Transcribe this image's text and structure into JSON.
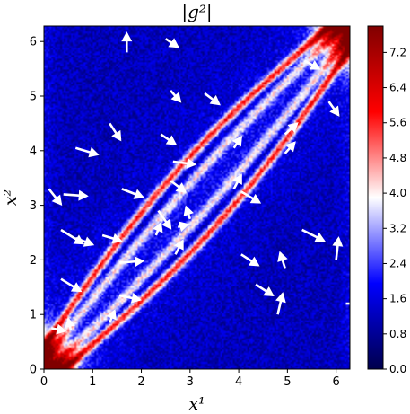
{
  "chart_data": {
    "type": "heatmap",
    "title": "|g²|",
    "xlabel": "x¹",
    "ylabel": "x²",
    "xlim": [
      0,
      6.283
    ],
    "ylim": [
      0,
      6.283
    ],
    "x_ticks": [
      0,
      1,
      2,
      3,
      4,
      5,
      6
    ],
    "y_ticks": [
      0,
      1,
      2,
      3,
      4,
      5,
      6
    ],
    "colorbar": {
      "colormap": "seismic",
      "range": [
        0.0,
        7.8
      ],
      "ticks": [
        "0.0",
        "0.8",
        "1.6",
        "2.4",
        "3.2",
        "4.0",
        "4.8",
        "5.6",
        "6.4",
        "7.2"
      ],
      "colors": [
        "#00004c",
        "#0000ff",
        "#ffffff",
        "#ff0000",
        "#800000"
      ]
    },
    "field": {
      "background_value": 1.2,
      "diagonal_band_value": 4.2,
      "ridge_value": 5.8,
      "corner_values": {
        "bottom_left": 7.0,
        "top_right": 7.0
      }
    },
    "quiver": [
      {
        "x": 0.15,
        "y": 0.75,
        "u": 0.28,
        "v": -0.05
      },
      {
        "x": 0.55,
        "y": 0.72,
        "u": -0.05,
        "v": 0.2
      },
      {
        "x": 1.35,
        "y": 0.85,
        "u": 0.1,
        "v": 0.22
      },
      {
        "x": 1.55,
        "y": 1.35,
        "u": 0.42,
        "v": -0.08
      },
      {
        "x": 0.35,
        "y": 1.65,
        "u": 0.4,
        "v": -0.22
      },
      {
        "x": 1.55,
        "y": 1.95,
        "u": 0.48,
        "v": 0.03
      },
      {
        "x": 0.35,
        "y": 2.55,
        "u": 0.45,
        "v": -0.25
      },
      {
        "x": 0.65,
        "y": 2.4,
        "u": 0.35,
        "v": -0.12
      },
      {
        "x": 1.2,
        "y": 2.45,
        "u": 0.38,
        "v": -0.1
      },
      {
        "x": 0.1,
        "y": 3.3,
        "u": 0.25,
        "v": -0.28
      },
      {
        "x": 0.4,
        "y": 3.2,
        "u": 0.48,
        "v": -0.03
      },
      {
        "x": 1.6,
        "y": 3.3,
        "u": 0.43,
        "v": -0.15
      },
      {
        "x": 2.35,
        "y": 2.9,
        "u": 0.25,
        "v": -0.32
      },
      {
        "x": 2.3,
        "y": 2.45,
        "u": 0.1,
        "v": 0.22
      },
      {
        "x": 2.75,
        "y": 2.6,
        "u": 0.2,
        "v": 0.05
      },
      {
        "x": 2.7,
        "y": 2.1,
        "u": 0.15,
        "v": 0.25
      },
      {
        "x": 3.0,
        "y": 2.75,
        "u": -0.08,
        "v": 0.22
      },
      {
        "x": 2.6,
        "y": 3.45,
        "u": 0.3,
        "v": -0.2
      },
      {
        "x": 2.65,
        "y": 3.8,
        "u": 0.45,
        "v": -0.05
      },
      {
        "x": 2.4,
        "y": 4.3,
        "u": 0.3,
        "v": -0.18
      },
      {
        "x": 2.6,
        "y": 5.1,
        "u": 0.2,
        "v": -0.2
      },
      {
        "x": 2.5,
        "y": 6.05,
        "u": 0.25,
        "v": -0.15
      },
      {
        "x": 1.7,
        "y": 5.8,
        "u": 0.0,
        "v": 0.35
      },
      {
        "x": 0.65,
        "y": 4.05,
        "u": 0.45,
        "v": -0.12
      },
      {
        "x": 1.35,
        "y": 4.5,
        "u": 0.22,
        "v": -0.3
      },
      {
        "x": 3.3,
        "y": 5.05,
        "u": 0.3,
        "v": -0.2
      },
      {
        "x": 3.9,
        "y": 3.3,
        "u": 0.15,
        "v": 0.25
      },
      {
        "x": 4.05,
        "y": 3.25,
        "u": 0.38,
        "v": -0.2
      },
      {
        "x": 3.9,
        "y": 4.05,
        "u": 0.15,
        "v": 0.2
      },
      {
        "x": 4.05,
        "y": 2.1,
        "u": 0.35,
        "v": -0.2
      },
      {
        "x": 4.35,
        "y": 1.55,
        "u": 0.35,
        "v": -0.2
      },
      {
        "x": 4.8,
        "y": 1.0,
        "u": 0.1,
        "v": 0.38
      },
      {
        "x": 4.95,
        "y": 1.85,
        "u": -0.1,
        "v": 0.28
      },
      {
        "x": 5.3,
        "y": 2.55,
        "u": 0.45,
        "v": -0.2
      },
      {
        "x": 6.0,
        "y": 2.0,
        "u": 0.05,
        "v": 0.4
      },
      {
        "x": 4.95,
        "y": 3.95,
        "u": 0.2,
        "v": 0.2
      },
      {
        "x": 4.95,
        "y": 4.3,
        "u": 0.25,
        "v": 0.2
      },
      {
        "x": 5.35,
        "y": 5.65,
        "u": 0.3,
        "v": -0.15
      },
      {
        "x": 5.85,
        "y": 4.9,
        "u": 0.2,
        "v": -0.25
      },
      {
        "x": 6.2,
        "y": 1.2,
        "u": 0.25,
        "v": 0.0
      }
    ]
  }
}
